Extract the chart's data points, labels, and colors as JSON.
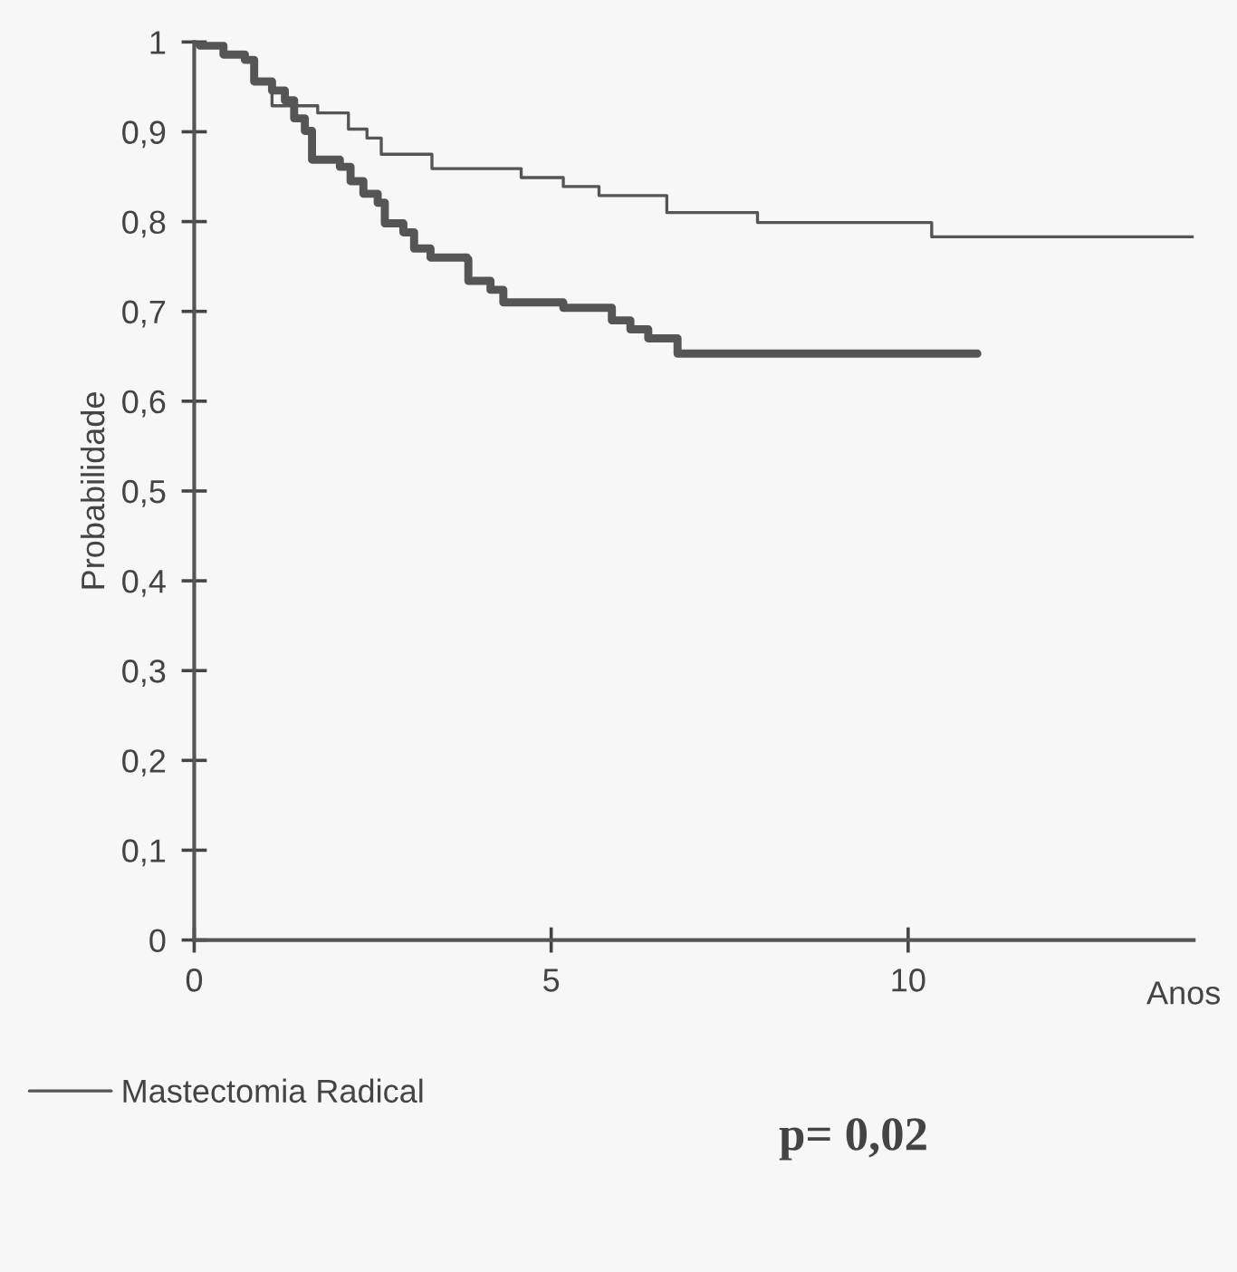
{
  "chart_data": {
    "type": "step",
    "xlabel": "Anos",
    "ylabel": "Probabilidade",
    "xlim": [
      0,
      14
    ],
    "ylim": [
      0,
      1
    ],
    "xticks": [
      0,
      5,
      10
    ],
    "yticks": [
      0,
      {
        "value": 0.1,
        "label": "0,1"
      },
      {
        "value": 0.2,
        "label": "0,2"
      },
      {
        "value": 0.3,
        "label": "0,3"
      },
      {
        "value": 0.4,
        "label": "0,4"
      },
      {
        "value": 0.5,
        "label": "0,5"
      },
      {
        "value": 0.6,
        "label": "0,6"
      },
      {
        "value": 0.7,
        "label": "0,7"
      },
      {
        "value": 0.8,
        "label": "0,8"
      },
      {
        "value": 0.9,
        "label": "0,9"
      },
      1
    ],
    "grid": false,
    "legend": "bottom left",
    "line_style": "solid",
    "marker": "none",
    "series": [
      {
        "name": "Mastectomia Radical",
        "color": "#555555",
        "x": [
          0,
          0.08,
          0.41,
          0.71,
          0.84,
          1.09,
          1.73,
          2.16,
          2.42,
          2.62,
          3.33,
          4.58,
          5.17,
          5.67,
          6.62,
          7.89,
          10.33,
          14.0
        ],
        "values": [
          1,
          0.996,
          0.986,
          0.98,
          0.956,
          0.929,
          0.921,
          0.903,
          0.893,
          0.875,
          0.859,
          0.849,
          0.839,
          0.829,
          0.81,
          0.799,
          0.783,
          0.783
        ]
      },
      {
        "color": "#555555",
        "x": [
          0,
          0.08,
          0.41,
          0.71,
          0.84,
          1.09,
          1.27,
          1.4,
          1.55,
          1.65,
          2.04,
          2.19,
          2.37,
          2.57,
          2.67,
          2.93,
          3.08,
          3.31,
          3.82,
          3.84,
          4.15,
          4.33,
          5.17,
          5.85,
          6.11,
          6.36,
          6.77,
          10.97
        ],
        "values": [
          1,
          0.996,
          0.986,
          0.98,
          0.956,
          0.946,
          0.935,
          0.915,
          0.901,
          0.869,
          0.861,
          0.845,
          0.831,
          0.821,
          0.798,
          0.788,
          0.77,
          0.76,
          0.758,
          0.734,
          0.724,
          0.71,
          0.704,
          0.69,
          0.68,
          0.67,
          0.653,
          0.653
        ]
      }
    ],
    "annotations": [
      "p= 0,02"
    ]
  }
}
